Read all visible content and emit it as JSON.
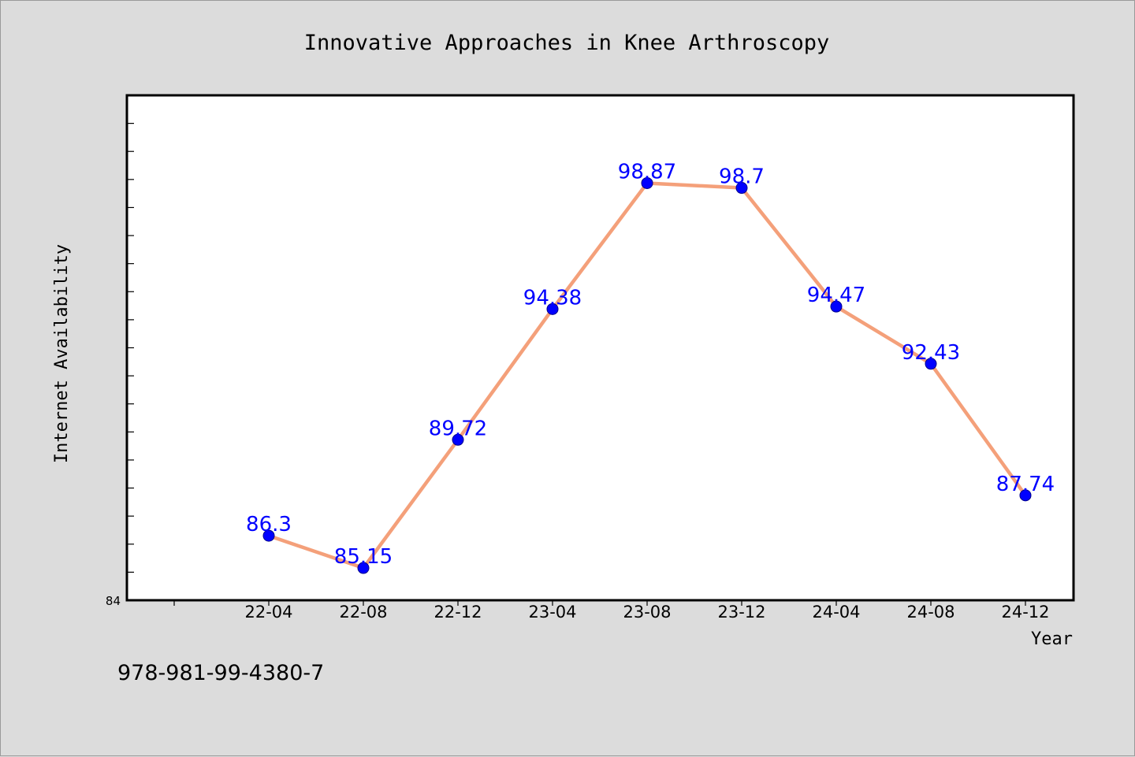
{
  "chart_data": {
    "type": "line",
    "title": "Innovative Approaches in Knee Arthroscopy",
    "xlabel": "Year",
    "ylabel": "Internet Availability",
    "categories": [
      "22-04",
      "22-08",
      "22-12",
      "23-04",
      "23-08",
      "23-12",
      "24-04",
      "24-08",
      "24-12"
    ],
    "series": [
      {
        "values": [
          86.3,
          85.15,
          89.72,
          94.38,
          98.87,
          98.7,
          94.47,
          92.43,
          87.74
        ],
        "data_labels": [
          "86.3",
          "85.15",
          "89.72",
          "94.38",
          "98.87",
          "98.7",
          "94.47",
          "92.43",
          "87.74"
        ]
      }
    ],
    "ylim": [
      84,
      102
    ],
    "yticks_labeled": [
      "84"
    ],
    "grid": false,
    "legend": "none",
    "colors": {
      "line": "#f4a07a",
      "marker": "#0000ff",
      "data_label": "#0000ff",
      "background": "#dcdcdc",
      "plot_background": "#ffffff"
    }
  },
  "footer": {
    "isbn": "978-981-99-4380-7"
  }
}
